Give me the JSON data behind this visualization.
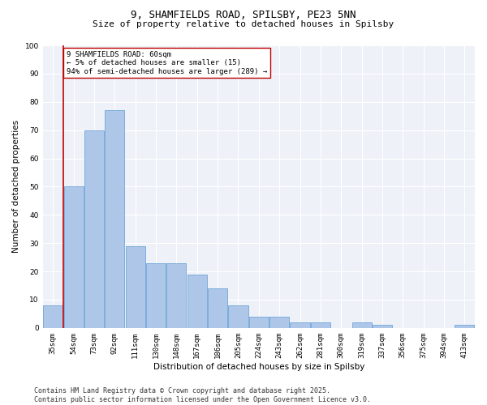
{
  "title1": "9, SHAMFIELDS ROAD, SPILSBY, PE23 5NN",
  "title2": "Size of property relative to detached houses in Spilsby",
  "xlabel": "Distribution of detached houses by size in Spilsby",
  "ylabel": "Number of detached properties",
  "categories": [
    "35sqm",
    "54sqm",
    "73sqm",
    "92sqm",
    "111sqm",
    "130sqm",
    "148sqm",
    "167sqm",
    "186sqm",
    "205sqm",
    "224sqm",
    "243sqm",
    "262sqm",
    "281sqm",
    "300sqm",
    "319sqm",
    "337sqm",
    "356sqm",
    "375sqm",
    "394sqm",
    "413sqm"
  ],
  "values": [
    8,
    50,
    70,
    77,
    29,
    23,
    23,
    19,
    14,
    8,
    4,
    4,
    2,
    2,
    0,
    2,
    1,
    0,
    0,
    0,
    1
  ],
  "bar_color": "#aec6e8",
  "bar_edge_color": "#5b9bd5",
  "highlight_line_color": "#c00000",
  "vline_x_index": 1,
  "annotation_text": "9 SHAMFIELDS ROAD: 60sqm\n← 5% of detached houses are smaller (15)\n94% of semi-detached houses are larger (289) →",
  "annotation_fontsize": 6.5,
  "annotation_box_color": "#ffffff",
  "annotation_box_edge_color": "#c00000",
  "ylim": [
    0,
    100
  ],
  "yticks": [
    0,
    10,
    20,
    30,
    40,
    50,
    60,
    70,
    80,
    90,
    100
  ],
  "background_color": "#eef2f8",
  "footer_text": "Contains HM Land Registry data © Crown copyright and database right 2025.\nContains public sector information licensed under the Open Government Licence v3.0.",
  "title_fontsize": 9,
  "subtitle_fontsize": 8,
  "axis_label_fontsize": 7.5,
  "tick_fontsize": 6.5,
  "footer_fontsize": 6
}
